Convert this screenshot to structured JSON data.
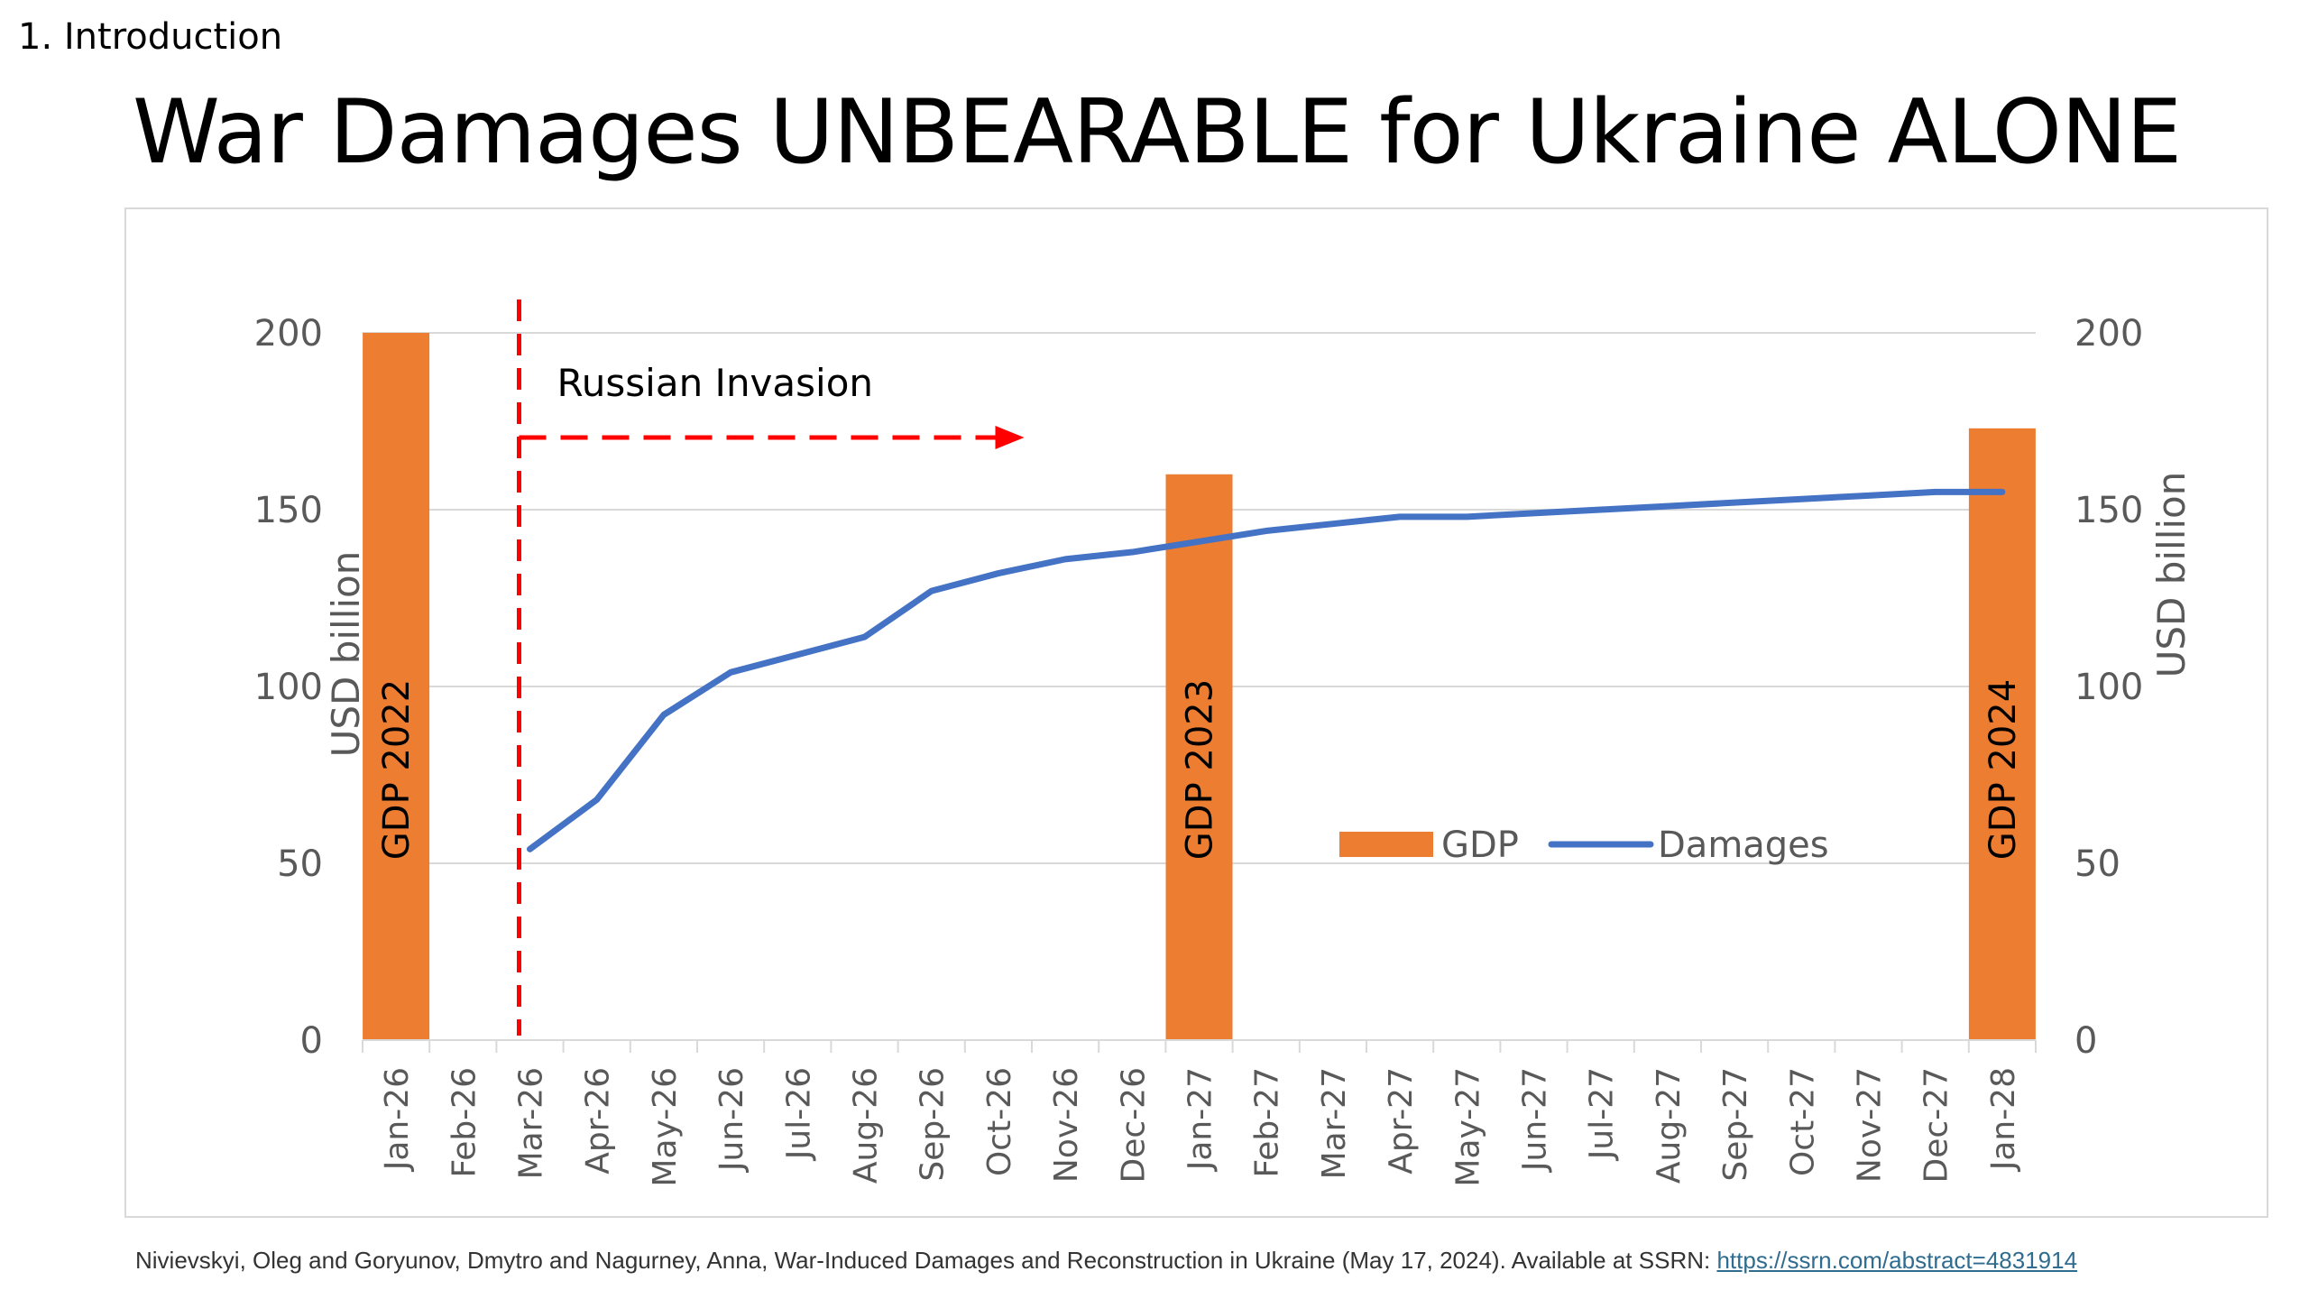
{
  "header": {
    "section": "1. Introduction",
    "title": "War Damages UNBEARABLE for Ukraine ALONE"
  },
  "citation": {
    "text": "Nivievskyi, Oleg and Goryunov, Dmytro and Nagurney, Anna, War-Induced Damages and Reconstruction in Ukraine (May 17, 2024). Available at SSRN: ",
    "link": "https://ssrn.com/abstract=4831914"
  },
  "colors": {
    "gdp": "#ed7d31",
    "damages": "#4472c4",
    "invasion": "#ff0000",
    "grid": "#d9d9d9",
    "axis_text": "#595959"
  },
  "chart_data": {
    "type": "bar",
    "categories": [
      "Jan-26",
      "Feb-26",
      "Mar-26",
      "Apr-26",
      "May-26",
      "Jun-26",
      "Jul-26",
      "Aug-26",
      "Sep-26",
      "Oct-26",
      "Nov-26",
      "Dec-26",
      "Jan-27",
      "Feb-27",
      "Mar-27",
      "Apr-27",
      "May-27",
      "Jun-27",
      "Jul-27",
      "Aug-27",
      "Sep-27",
      "Oct-27",
      "Nov-27",
      "Dec-27",
      "Jan-28"
    ],
    "ylabel": "USD billion",
    "ylabel_right": "USD billion",
    "ylim": [
      0,
      200
    ],
    "yticks": [
      0,
      50,
      100,
      150,
      200
    ],
    "grid": true,
    "legend": "center-right",
    "series": [
      {
        "name": "GDP",
        "type": "bar",
        "values": [
          200,
          null,
          null,
          null,
          null,
          null,
          null,
          null,
          null,
          null,
          null,
          null,
          160,
          null,
          null,
          null,
          null,
          null,
          null,
          null,
          null,
          null,
          null,
          null,
          173
        ],
        "bar_labels": [
          "GDP 2022",
          "GDP 2023",
          "GDP 2024"
        ]
      },
      {
        "name": "Damages",
        "type": "line",
        "values": [
          null,
          null,
          54,
          68,
          92,
          104,
          109,
          114,
          127,
          132,
          136,
          138,
          141,
          144,
          146,
          148,
          148,
          149,
          150,
          151,
          152,
          153,
          154,
          155,
          155
        ]
      }
    ],
    "annotations": [
      {
        "text": "Russian Invasion",
        "category": "Mar-26"
      }
    ]
  }
}
